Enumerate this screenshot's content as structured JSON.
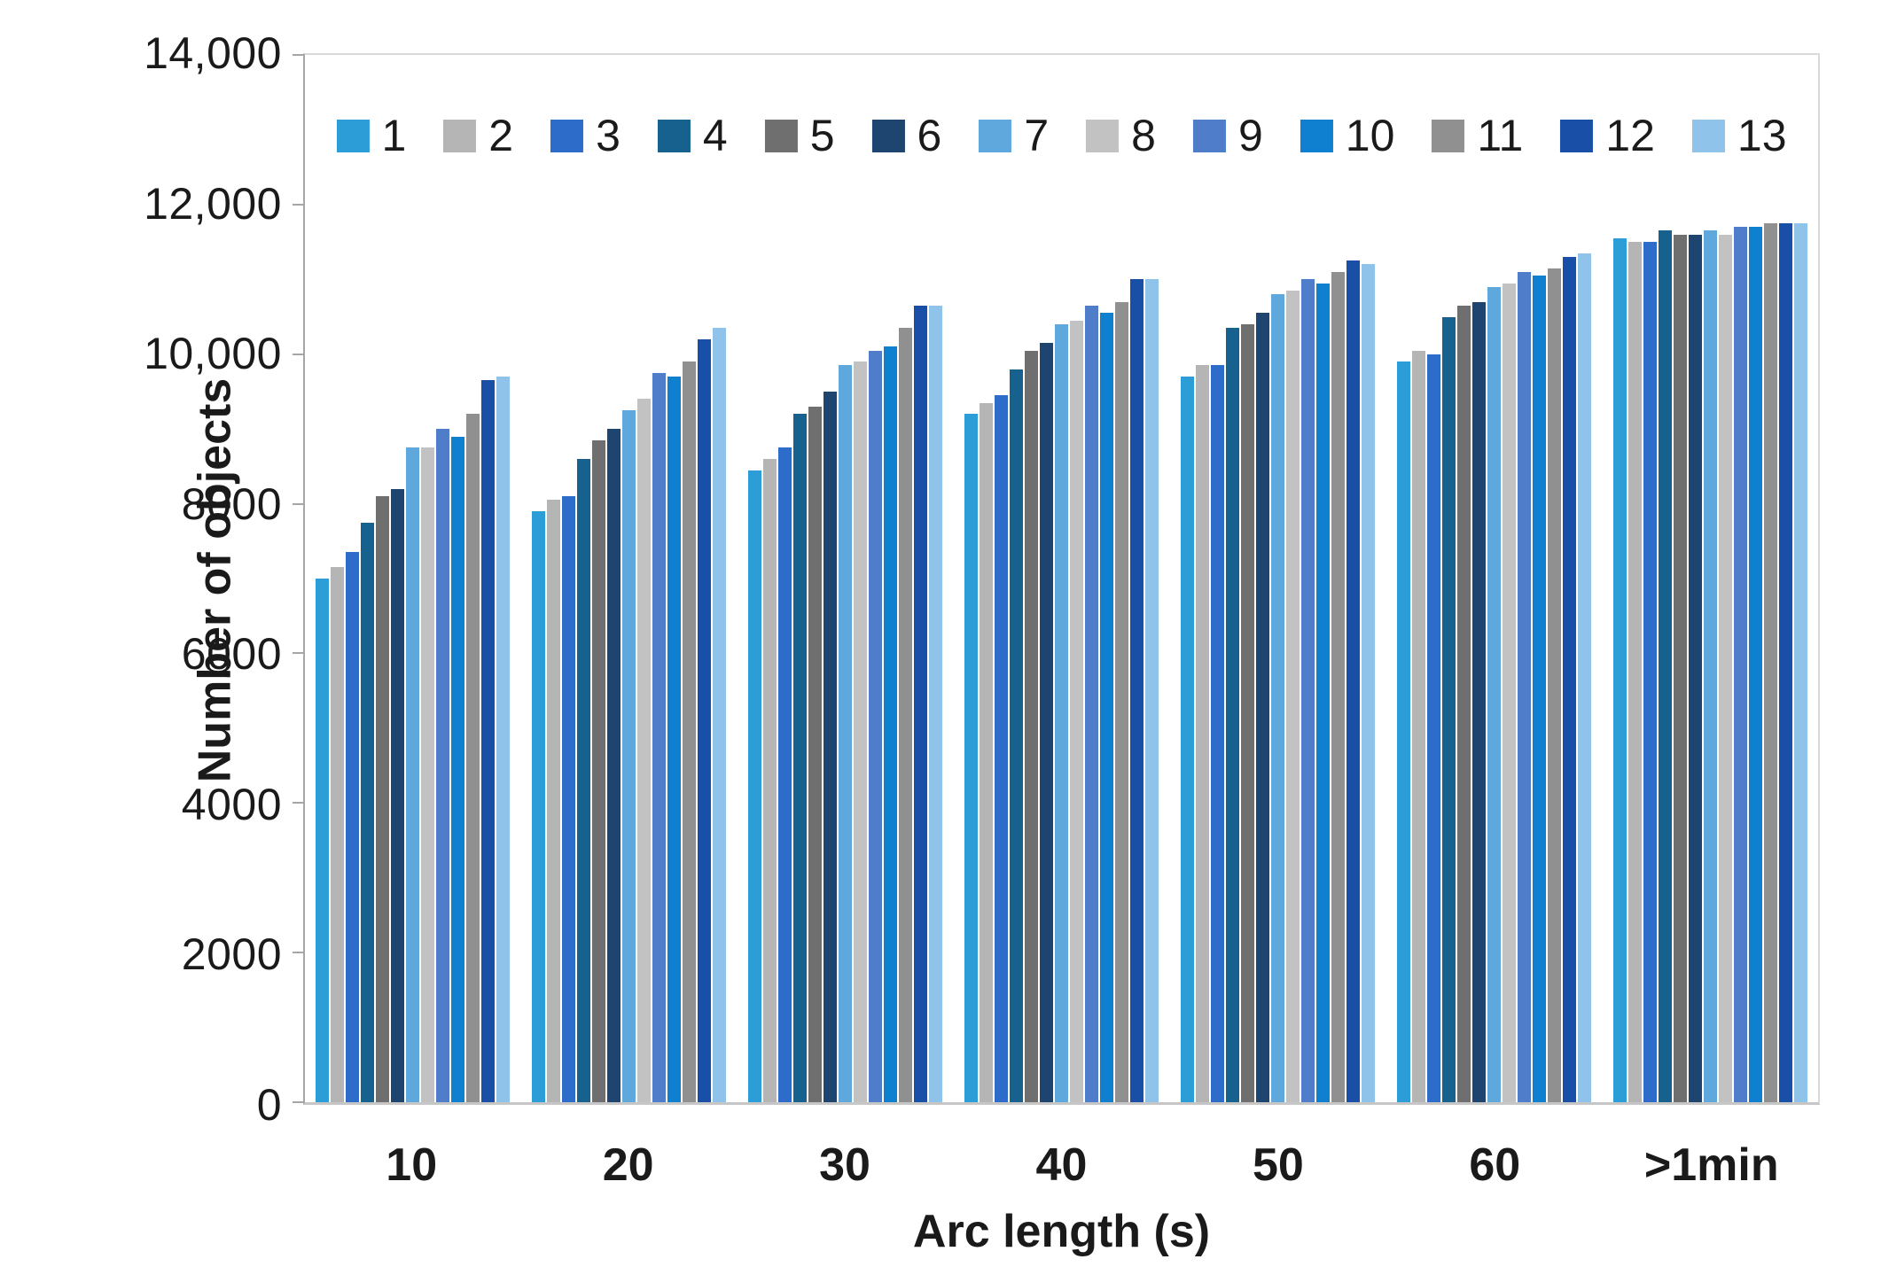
{
  "chart_data": {
    "type": "bar",
    "title": "",
    "xlabel": "Arc length (s)",
    "ylabel": "Number of objects",
    "categories": [
      "10",
      "20",
      "30",
      "40",
      "50",
      "60",
      ">1min"
    ],
    "y_ticks": [
      "14,000",
      "12,000",
      "10,000",
      "8000",
      "6000",
      "4000",
      "2000",
      "0"
    ],
    "ylim": [
      0,
      14000
    ],
    "grid": false,
    "legend_position": "top-inside",
    "series": [
      {
        "name": "1",
        "color": "#2D9DD8",
        "values": [
          7000,
          7900,
          8450,
          9200,
          9700,
          9900,
          11550
        ]
      },
      {
        "name": "2",
        "color": "#B5B5B5",
        "values": [
          7150,
          8050,
          8600,
          9350,
          9850,
          10050,
          11500
        ]
      },
      {
        "name": "3",
        "color": "#2D6CC8",
        "values": [
          7350,
          8100,
          8750,
          9450,
          9850,
          10000,
          11500
        ]
      },
      {
        "name": "4",
        "color": "#17618F",
        "values": [
          7750,
          8600,
          9200,
          9800,
          10350,
          10500,
          11650
        ]
      },
      {
        "name": "5",
        "color": "#6F6F6F",
        "values": [
          8100,
          8850,
          9300,
          10050,
          10400,
          10650,
          11600
        ]
      },
      {
        "name": "6",
        "color": "#1E4470",
        "values": [
          8200,
          9000,
          9500,
          10150,
          10550,
          10700,
          11600
        ]
      },
      {
        "name": "7",
        "color": "#5FA8DE",
        "values": [
          8750,
          9250,
          9850,
          10400,
          10800,
          10900,
          11650
        ]
      },
      {
        "name": "8",
        "color": "#C2C2C2",
        "values": [
          8750,
          9400,
          9900,
          10450,
          10850,
          10950,
          11600
        ]
      },
      {
        "name": "9",
        "color": "#4F7DC9",
        "values": [
          9000,
          9750,
          10050,
          10650,
          11000,
          11100,
          11700
        ]
      },
      {
        "name": "10",
        "color": "#0F7FD0",
        "values": [
          8900,
          9700,
          10100,
          10550,
          10950,
          11050,
          11700
        ]
      },
      {
        "name": "11",
        "color": "#909090",
        "values": [
          9200,
          9900,
          10350,
          10700,
          11100,
          11150,
          11750
        ]
      },
      {
        "name": "12",
        "color": "#1A4FA8",
        "values": [
          9650,
          10200,
          10650,
          11000,
          11250,
          11300,
          11750
        ]
      },
      {
        "name": "13",
        "color": "#8FC3E9",
        "values": [
          9700,
          10350,
          10650,
          11000,
          11200,
          11350,
          11750
        ]
      }
    ]
  }
}
